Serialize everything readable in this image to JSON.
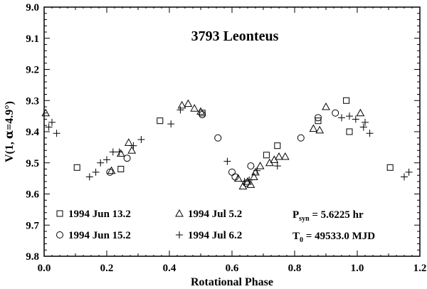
{
  "chart_data": {
    "type": "scatter",
    "title": "3793 Leonteus",
    "xlabel": "Rotational Phase",
    "ylabel": "V(1, α=4.9°)",
    "ylabel_parts": [
      "V(1, ",
      "α",
      "=4.9°)"
    ],
    "xlim": [
      0.0,
      1.2
    ],
    "ylim": [
      9.8,
      9.0
    ],
    "y_inverted": true,
    "grid": false,
    "x_ticks": [
      "0.0",
      "0.2",
      "0.4",
      "0.6",
      "0.8",
      "1.0",
      "1.2"
    ],
    "y_ticks": [
      "9.0",
      "9.1",
      "9.2",
      "9.3",
      "9.4",
      "9.5",
      "9.6",
      "9.7",
      "9.8"
    ],
    "legend_placement": "bottom-left",
    "annotations": {
      "period_prefix": "P",
      "period_sub": "syn",
      "period_value": " = 5.6225 hr",
      "t0_prefix": "T",
      "t0_sub": "0",
      "t0_value": " = 49533.0 MJD"
    },
    "series": [
      {
        "name": "1994 Jun 13.2",
        "marker": "square",
        "points": [
          [
            0.105,
            9.515
          ],
          [
            0.245,
            9.52
          ],
          [
            0.37,
            9.365
          ],
          [
            0.505,
            9.34
          ],
          [
            0.71,
            9.475
          ],
          [
            0.745,
            9.445
          ],
          [
            0.875,
            9.365
          ],
          [
            0.965,
            9.3
          ],
          [
            0.975,
            9.4
          ],
          [
            1.105,
            9.515
          ]
        ]
      },
      {
        "name": "1994 Jun 15.2",
        "marker": "circle",
        "points": [
          [
            0.21,
            9.53
          ],
          [
            0.265,
            9.485
          ],
          [
            0.505,
            9.345
          ],
          [
            0.555,
            9.42
          ],
          [
            0.6,
            9.53
          ],
          [
            0.61,
            9.545
          ],
          [
            0.645,
            9.565
          ],
          [
            0.66,
            9.51
          ],
          [
            0.82,
            9.42
          ],
          [
            0.875,
            9.355
          ],
          [
            0.93,
            9.34
          ]
        ]
      },
      {
        "name": "1994 Jul 5.2",
        "marker": "triangle",
        "points": [
          [
            0.005,
            9.34
          ],
          [
            0.215,
            9.525
          ],
          [
            0.245,
            9.47
          ],
          [
            0.27,
            9.435
          ],
          [
            0.28,
            9.46
          ],
          [
            0.44,
            9.315
          ],
          [
            0.46,
            9.31
          ],
          [
            0.48,
            9.325
          ],
          [
            0.5,
            9.335
          ],
          [
            0.62,
            9.55
          ],
          [
            0.635,
            9.575
          ],
          [
            0.65,
            9.56
          ],
          [
            0.66,
            9.57
          ],
          [
            0.67,
            9.545
          ],
          [
            0.675,
            9.53
          ],
          [
            0.69,
            9.51
          ],
          [
            0.72,
            9.5
          ],
          [
            0.735,
            9.49
          ],
          [
            0.75,
            9.48
          ],
          [
            0.77,
            9.48
          ],
          [
            0.86,
            9.39
          ],
          [
            0.88,
            9.395
          ],
          [
            0.9,
            9.32
          ],
          [
            1.01,
            9.34
          ]
        ]
      },
      {
        "name": "1994 Jul 6.2",
        "marker": "plus",
        "points": [
          [
            0.015,
            9.385
          ],
          [
            0.025,
            9.37
          ],
          [
            0.04,
            9.405
          ],
          [
            0.145,
            9.545
          ],
          [
            0.165,
            9.53
          ],
          [
            0.18,
            9.5
          ],
          [
            0.2,
            9.49
          ],
          [
            0.22,
            9.465
          ],
          [
            0.24,
            9.465
          ],
          [
            0.285,
            9.445
          ],
          [
            0.31,
            9.425
          ],
          [
            0.405,
            9.375
          ],
          [
            0.435,
            9.33
          ],
          [
            0.585,
            9.495
          ],
          [
            0.64,
            9.56
          ],
          [
            0.655,
            9.555
          ],
          [
            0.68,
            9.525
          ],
          [
            0.745,
            9.51
          ],
          [
            0.95,
            9.355
          ],
          [
            0.975,
            9.35
          ],
          [
            0.995,
            9.36
          ],
          [
            1.02,
            9.385
          ],
          [
            1.025,
            9.37
          ],
          [
            1.04,
            9.405
          ],
          [
            1.15,
            9.545
          ],
          [
            1.165,
            9.53
          ]
        ]
      }
    ]
  }
}
